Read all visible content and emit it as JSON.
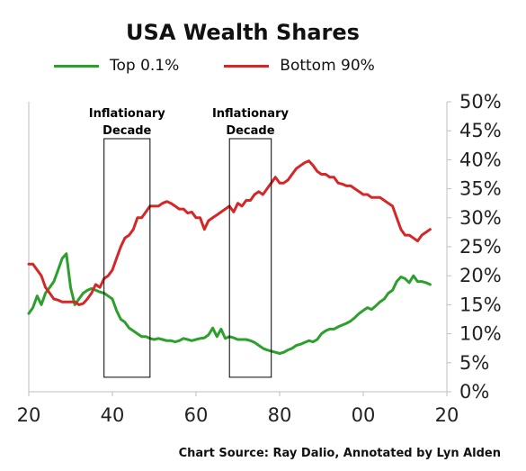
{
  "chart_data": {
    "type": "line",
    "title": "USA Wealth Shares",
    "xlabel": "",
    "ylabel": "",
    "x_ticks": [
      "20",
      "40",
      "60",
      "80",
      "00",
      "20"
    ],
    "y_ticks": [
      "0%",
      "5%",
      "10%",
      "15%",
      "20%",
      "25%",
      "30%",
      "35%",
      "40%",
      "45%",
      "50%"
    ],
    "xlim": [
      1920,
      2020
    ],
    "ylim": [
      0,
      50
    ],
    "legend_position": "top",
    "grid": false,
    "series": [
      {
        "name": "Top 0.1%",
        "color": "#2ca02c",
        "x": [
          1920,
          1921,
          1922,
          1923,
          1924,
          1925,
          1926,
          1927,
          1928,
          1929,
          1930,
          1931,
          1932,
          1933,
          1934,
          1935,
          1936,
          1937,
          1938,
          1939,
          1940,
          1941,
          1942,
          1943,
          1944,
          1945,
          1946,
          1947,
          1948,
          1949,
          1950,
          1951,
          1952,
          1953,
          1954,
          1955,
          1956,
          1957,
          1958,
          1959,
          1960,
          1961,
          1962,
          1963,
          1964,
          1965,
          1966,
          1967,
          1968,
          1969,
          1970,
          1971,
          1972,
          1973,
          1974,
          1975,
          1976,
          1977,
          1978,
          1979,
          1980,
          1981,
          1982,
          1983,
          1984,
          1985,
          1986,
          1987,
          1988,
          1989,
          1990,
          1991,
          1992,
          1993,
          1994,
          1995,
          1996,
          1997,
          1998,
          1999,
          2000,
          2001,
          2002,
          2003,
          2004,
          2005,
          2006,
          2007,
          2008,
          2009,
          2010,
          2011,
          2012,
          2013,
          2014,
          2015,
          2016
        ],
        "values": [
          13.5,
          14.5,
          16.5,
          15,
          17,
          18,
          19,
          21,
          23,
          23.8,
          18,
          15,
          16,
          17,
          17.5,
          17.8,
          17.5,
          17.2,
          17,
          16.5,
          16,
          14,
          12.5,
          12,
          11,
          10.5,
          10,
          9.5,
          9.5,
          9.2,
          9,
          9.2,
          9,
          8.8,
          8.8,
          8.6,
          8.8,
          9.2,
          9,
          8.8,
          9,
          9.2,
          9.3,
          9.8,
          11,
          9.5,
          10.8,
          9.2,
          9.5,
          9.3,
          9,
          9,
          9,
          8.8,
          8.5,
          8,
          7.5,
          7.2,
          7,
          6.8,
          6.6,
          6.8,
          7.2,
          7.5,
          8,
          8.2,
          8.5,
          8.8,
          8.6,
          9,
          10,
          10.5,
          10.8,
          10.8,
          11.2,
          11.5,
          11.8,
          12.2,
          12.8,
          13.5,
          14,
          14.5,
          14.2,
          14.8,
          15.5,
          16,
          17,
          17.5,
          19,
          19.8,
          19.5,
          18.8,
          20,
          19,
          19,
          18.8,
          18.5
        ]
      },
      {
        "name": "Bottom 90%",
        "color": "#d62728",
        "x": [
          1920,
          1921,
          1922,
          1923,
          1924,
          1925,
          1926,
          1927,
          1928,
          1929,
          1930,
          1931,
          1932,
          1933,
          1934,
          1935,
          1936,
          1937,
          1938,
          1939,
          1940,
          1941,
          1942,
          1943,
          1944,
          1945,
          1946,
          1947,
          1948,
          1949,
          1950,
          1951,
          1952,
          1953,
          1954,
          1955,
          1956,
          1957,
          1958,
          1959,
          1960,
          1961,
          1962,
          1963,
          1964,
          1965,
          1966,
          1967,
          1968,
          1969,
          1970,
          1971,
          1972,
          1973,
          1974,
          1975,
          1976,
          1977,
          1978,
          1979,
          1980,
          1981,
          1982,
          1983,
          1984,
          1985,
          1986,
          1987,
          1988,
          1989,
          1990,
          1991,
          1992,
          1993,
          1994,
          1995,
          1996,
          1997,
          1998,
          1999,
          2000,
          2001,
          2002,
          2003,
          2004,
          2005,
          2006,
          2007,
          2008,
          2009,
          2010,
          2011,
          2012,
          2013,
          2014,
          2015,
          2016
        ],
        "values": [
          22,
          22,
          21,
          20,
          18,
          17,
          16,
          15.8,
          15.5,
          15.5,
          15.5,
          15.5,
          15,
          15.2,
          16,
          17,
          18.5,
          18,
          19.5,
          20,
          21,
          23,
          25,
          26.5,
          27,
          28,
          30,
          30,
          31,
          32,
          32,
          32,
          32.5,
          32.8,
          32.5,
          32,
          31.5,
          31.5,
          30.8,
          31,
          30,
          30,
          28,
          29.5,
          30,
          30.5,
          31,
          31.5,
          32,
          31,
          32.5,
          32,
          33,
          33,
          34,
          34.5,
          34,
          35,
          36,
          37,
          36,
          36,
          36.5,
          37.5,
          38.5,
          39,
          39.5,
          39.8,
          39,
          38,
          37.5,
          37.5,
          37,
          37,
          36,
          35.8,
          35.5,
          35.5,
          35,
          34.5,
          34,
          34,
          33.5,
          33.5,
          33.5,
          33,
          32.5,
          32,
          30,
          28,
          27,
          27,
          26.5,
          26,
          27,
          27.5,
          28
        ]
      }
    ],
    "annotations": [
      {
        "label_lines": [
          "Inflationary",
          "Decade"
        ],
        "x_start": 1938,
        "x_end": 1949,
        "y_bottom": 2.5
      },
      {
        "label_lines": [
          "Inflationary",
          "Decade"
        ],
        "x_start": 1968,
        "x_end": 1978,
        "y_bottom": 2.5
      }
    ]
  },
  "source_text": "Chart Source: Ray Dalio, Annotated by Lyn Alden"
}
